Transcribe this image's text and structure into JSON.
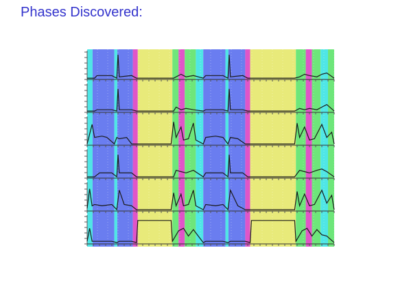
{
  "page": {
    "title": "Phases Discovered:",
    "title_color": "#3333cc"
  },
  "chart_data": {
    "type": "line",
    "title": "",
    "xlabel": "",
    "ylabel": "",
    "grid": true,
    "axes": "six vertically stacked panels sharing one time axis; no numeric tick labels",
    "x_range": [
      0,
      1
    ],
    "panel_count": 6,
    "phase_palette": {
      "cyan": "#4fe6e6",
      "blue": "#6a7df0",
      "magenta": "#e055c8",
      "yellow": "#e8ea7a",
      "green": "#6ee67a"
    },
    "phases": [
      {
        "start": 0.0,
        "end": 0.022,
        "phase": "cyan"
      },
      {
        "start": 0.022,
        "end": 0.11,
        "phase": "blue"
      },
      {
        "start": 0.11,
        "end": 0.122,
        "phase": "cyan"
      },
      {
        "start": 0.122,
        "end": 0.185,
        "phase": "blue"
      },
      {
        "start": 0.185,
        "end": 0.205,
        "phase": "magenta"
      },
      {
        "start": 0.205,
        "end": 0.345,
        "phase": "yellow"
      },
      {
        "start": 0.345,
        "end": 0.37,
        "phase": "green"
      },
      {
        "start": 0.37,
        "end": 0.395,
        "phase": "magenta"
      },
      {
        "start": 0.395,
        "end": 0.44,
        "phase": "green"
      },
      {
        "start": 0.44,
        "end": 0.47,
        "phase": "cyan"
      },
      {
        "start": 0.47,
        "end": 0.56,
        "phase": "blue"
      },
      {
        "start": 0.56,
        "end": 0.572,
        "phase": "cyan"
      },
      {
        "start": 0.572,
        "end": 0.64,
        "phase": "blue"
      },
      {
        "start": 0.64,
        "end": 0.66,
        "phase": "magenta"
      },
      {
        "start": 0.66,
        "end": 0.845,
        "phase": "yellow"
      },
      {
        "start": 0.845,
        "end": 0.885,
        "phase": "green"
      },
      {
        "start": 0.885,
        "end": 0.91,
        "phase": "magenta"
      },
      {
        "start": 0.91,
        "end": 0.945,
        "phase": "green"
      },
      {
        "start": 0.945,
        "end": 0.975,
        "phase": "cyan"
      },
      {
        "start": 0.975,
        "end": 1.0,
        "phase": "green"
      }
    ],
    "series": [
      {
        "x": [
          0,
          0.03,
          0.04,
          0.1,
          0.12,
          0.125,
          0.13,
          0.18,
          0.2,
          0.35,
          0.36,
          0.38,
          0.4,
          0.43,
          0.47,
          0.48,
          0.55,
          0.57,
          0.575,
          0.58,
          0.63,
          0.65,
          0.84,
          0.86,
          0.88,
          0.9,
          0.93,
          0.95,
          0.97,
          1.0
        ],
        "y": [
          0.05,
          0.05,
          0.15,
          0.15,
          0.05,
          0.95,
          0.1,
          0.15,
          0.05,
          0.05,
          0.1,
          0.2,
          0.1,
          0.15,
          0.05,
          0.15,
          0.15,
          0.05,
          0.95,
          0.1,
          0.15,
          0.05,
          0.05,
          0.1,
          0.2,
          0.15,
          0.1,
          0.2,
          0.25,
          0.05
        ]
      },
      {
        "x": [
          0,
          0.03,
          0.04,
          0.1,
          0.12,
          0.125,
          0.13,
          0.18,
          0.2,
          0.35,
          0.36,
          0.38,
          0.4,
          0.43,
          0.47,
          0.48,
          0.55,
          0.57,
          0.575,
          0.58,
          0.63,
          0.65,
          0.84,
          0.86,
          0.88,
          0.9,
          0.93,
          0.95,
          0.97,
          1.0
        ],
        "y": [
          0.05,
          0.05,
          0.1,
          0.1,
          0.05,
          0.9,
          0.1,
          0.1,
          0.05,
          0.05,
          0.2,
          0.1,
          0.15,
          0.1,
          0.05,
          0.1,
          0.1,
          0.05,
          0.9,
          0.1,
          0.1,
          0.05,
          0.05,
          0.15,
          0.1,
          0.15,
          0.1,
          0.2,
          0.3,
          0.05
        ]
      },
      {
        "x": [
          0,
          0.02,
          0.03,
          0.06,
          0.08,
          0.11,
          0.12,
          0.13,
          0.16,
          0.18,
          0.2,
          0.34,
          0.35,
          0.36,
          0.38,
          0.39,
          0.41,
          0.43,
          0.44,
          0.47,
          0.48,
          0.52,
          0.55,
          0.57,
          0.58,
          0.61,
          0.64,
          0.66,
          0.84,
          0.85,
          0.86,
          0.88,
          0.9,
          0.92,
          0.95,
          0.97,
          0.99,
          1.0
        ],
        "y": [
          0.05,
          0.8,
          0.3,
          0.35,
          0.3,
          0.05,
          0.3,
          0.25,
          0.3,
          0.05,
          0.05,
          0.05,
          0.9,
          0.3,
          0.7,
          0.2,
          0.25,
          0.85,
          0.2,
          0.05,
          0.3,
          0.35,
          0.3,
          0.05,
          0.3,
          0.25,
          0.05,
          0.05,
          0.05,
          0.85,
          0.3,
          0.7,
          0.2,
          0.25,
          0.8,
          0.3,
          0.5,
          0.05
        ]
      },
      {
        "x": [
          0,
          0.03,
          0.05,
          0.1,
          0.12,
          0.125,
          0.13,
          0.18,
          0.2,
          0.35,
          0.36,
          0.38,
          0.4,
          0.43,
          0.47,
          0.48,
          0.55,
          0.57,
          0.575,
          0.58,
          0.63,
          0.65,
          0.84,
          0.86,
          0.88,
          0.9,
          0.93,
          0.95,
          0.97,
          1.0
        ],
        "y": [
          0.05,
          0.05,
          0.2,
          0.2,
          0.05,
          0.9,
          0.2,
          0.2,
          0.05,
          0.05,
          0.3,
          0.25,
          0.2,
          0.3,
          0.05,
          0.2,
          0.2,
          0.05,
          0.9,
          0.2,
          0.2,
          0.05,
          0.05,
          0.3,
          0.25,
          0.2,
          0.3,
          0.35,
          0.25,
          0.05
        ]
      },
      {
        "x": [
          0,
          0.01,
          0.02,
          0.03,
          0.06,
          0.1,
          0.12,
          0.13,
          0.15,
          0.18,
          0.2,
          0.34,
          0.35,
          0.36,
          0.38,
          0.39,
          0.41,
          0.43,
          0.44,
          0.47,
          0.48,
          0.52,
          0.55,
          0.57,
          0.58,
          0.61,
          0.64,
          0.66,
          0.84,
          0.85,
          0.86,
          0.88,
          0.9,
          0.92,
          0.95,
          0.97,
          0.99,
          1.0
        ],
        "y": [
          0.1,
          0.85,
          0.2,
          0.25,
          0.2,
          0.25,
          0.05,
          0.8,
          0.25,
          0.2,
          0.05,
          0.05,
          0.7,
          0.2,
          0.65,
          0.2,
          0.25,
          0.8,
          0.2,
          0.05,
          0.25,
          0.2,
          0.25,
          0.05,
          0.8,
          0.2,
          0.05,
          0.05,
          0.05,
          0.75,
          0.2,
          0.65,
          0.2,
          0.25,
          0.8,
          0.3,
          0.6,
          0.05
        ]
      },
      {
        "x": [
          0,
          0.01,
          0.02,
          0.1,
          0.12,
          0.13,
          0.18,
          0.2,
          0.205,
          0.34,
          0.345,
          0.37,
          0.39,
          0.41,
          0.43,
          0.45,
          0.47,
          0.48,
          0.55,
          0.57,
          0.58,
          0.64,
          0.66,
          0.665,
          0.84,
          0.845,
          0.87,
          0.89,
          0.91,
          0.93,
          0.95,
          0.97,
          1.0
        ],
        "y": [
          0.1,
          0.6,
          0.1,
          0.1,
          0.05,
          0.1,
          0.1,
          0.05,
          0.9,
          0.9,
          0.1,
          0.5,
          0.6,
          0.3,
          0.55,
          0.3,
          0.05,
          0.1,
          0.1,
          0.05,
          0.1,
          0.1,
          0.05,
          0.9,
          0.9,
          0.1,
          0.5,
          0.6,
          0.3,
          0.55,
          0.35,
          0.3,
          0.05
        ]
      }
    ]
  }
}
